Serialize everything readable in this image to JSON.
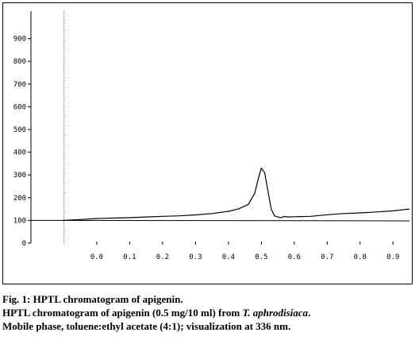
{
  "figure": {
    "caption_title": "Fig. 1: HPTL chromatogram of apigenin.",
    "caption_line2_a": "HPTL chromatogram of apigenin (0.5 mg/10 ml) from ",
    "caption_line2_species": "T. aphrodisiaca",
    "caption_line2_b": ".",
    "caption_line3": "Mobile phase, toluene:ethyl acetate (4:1); visualization at 336 nm."
  },
  "chart_data": {
    "type": "line",
    "title": "",
    "xlabel": "",
    "ylabel": "",
    "xlim": [
      -0.2,
      0.95
    ],
    "ylim": [
      0,
      1000
    ],
    "x_ticks": [
      0.0,
      0.1,
      0.2,
      0.3,
      0.4,
      0.5,
      0.6,
      0.7,
      0.8,
      0.9
    ],
    "x_tick_labels": [
      "0.0",
      "0.1",
      "0.2",
      "0.3",
      "0.4",
      "0.5",
      "0.6",
      "0.7",
      "0.8",
      "0.9"
    ],
    "y_ticks": [
      0,
      100,
      200,
      300,
      400,
      500,
      600,
      700,
      800,
      900
    ],
    "y_tick_labels": [
      "0",
      "100",
      "200",
      "300",
      "400",
      "500",
      "600",
      "700",
      "800",
      "900"
    ],
    "start_marker_x": -0.1,
    "baseline": {
      "x": [
        -0.2,
        0.95
      ],
      "y": [
        100,
        98
      ]
    },
    "series": [
      {
        "x": [
          -0.1,
          -0.05,
          0.0,
          0.05,
          0.1,
          0.15,
          0.2,
          0.25,
          0.3,
          0.35,
          0.4,
          0.43,
          0.46,
          0.48,
          0.49,
          0.5,
          0.51,
          0.52,
          0.53,
          0.54,
          0.55,
          0.56,
          0.57,
          0.58,
          0.6,
          0.65,
          0.7,
          0.75,
          0.8,
          0.85,
          0.9,
          0.95
        ],
        "y": [
          100,
          104,
          108,
          110,
          112,
          115,
          118,
          120,
          124,
          130,
          140,
          150,
          170,
          220,
          280,
          330,
          310,
          230,
          150,
          120,
          115,
          112,
          118,
          115,
          116,
          118,
          125,
          130,
          133,
          137,
          142,
          150
        ]
      }
    ],
    "grid": false,
    "colors": {
      "series": "#000000",
      "baseline": "#000000",
      "marker": "#777777"
    }
  }
}
